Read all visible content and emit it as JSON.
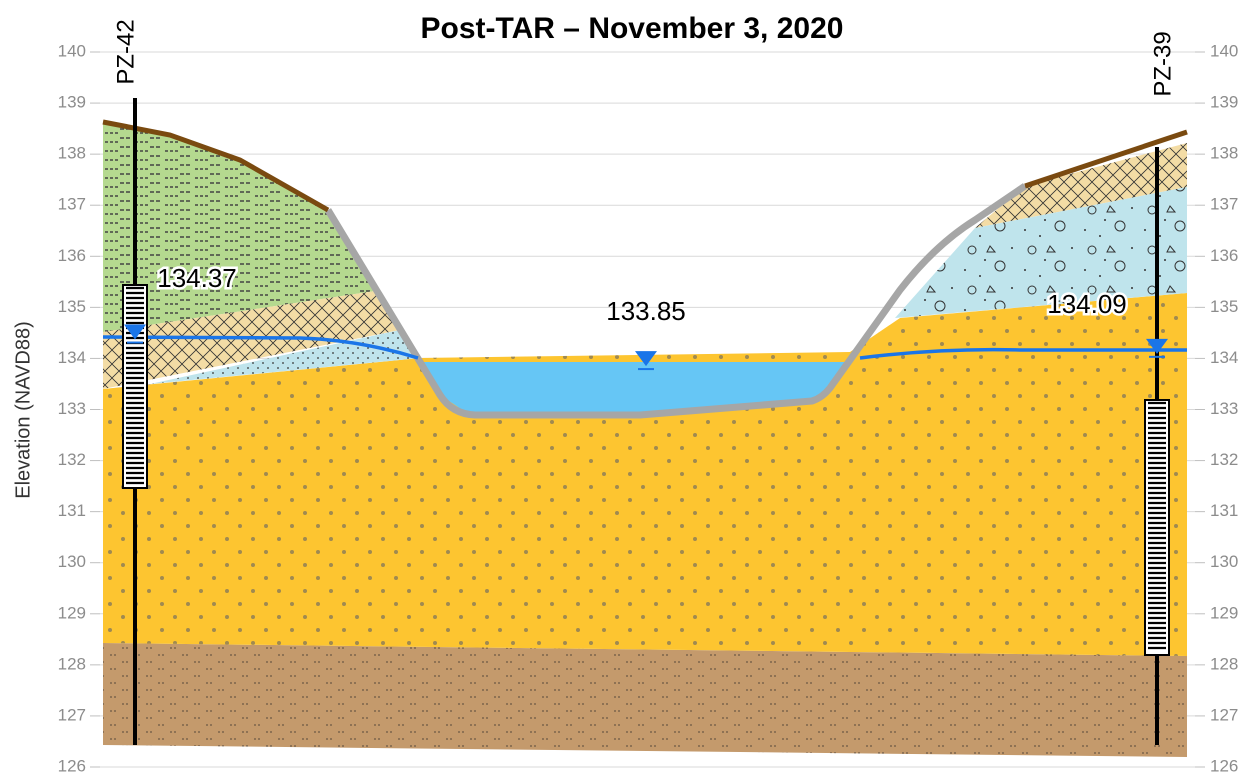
{
  "chart_data": {
    "type": "cross-section",
    "title": "Post-TAR – November 3, 2020",
    "y_label": "Elevation (NAVD88)",
    "ylim": [
      126,
      140
    ],
    "yticks": [
      126,
      127,
      128,
      129,
      130,
      131,
      132,
      133,
      134,
      135,
      136,
      137,
      138,
      139,
      140
    ],
    "y2lim": [
      126,
      140
    ],
    "y2ticks": [
      126,
      127,
      128,
      129,
      130,
      131,
      132,
      133,
      134,
      135,
      136,
      137,
      138,
      139,
      140
    ],
    "grid": true,
    "marker_color": "#1a75e8",
    "wells": [
      {
        "name": "PZ-42",
        "water_level": 134.37
      },
      {
        "name": "PZ-39",
        "water_level": 134.09
      }
    ],
    "channel": {
      "water_level": 133.85
    }
  }
}
